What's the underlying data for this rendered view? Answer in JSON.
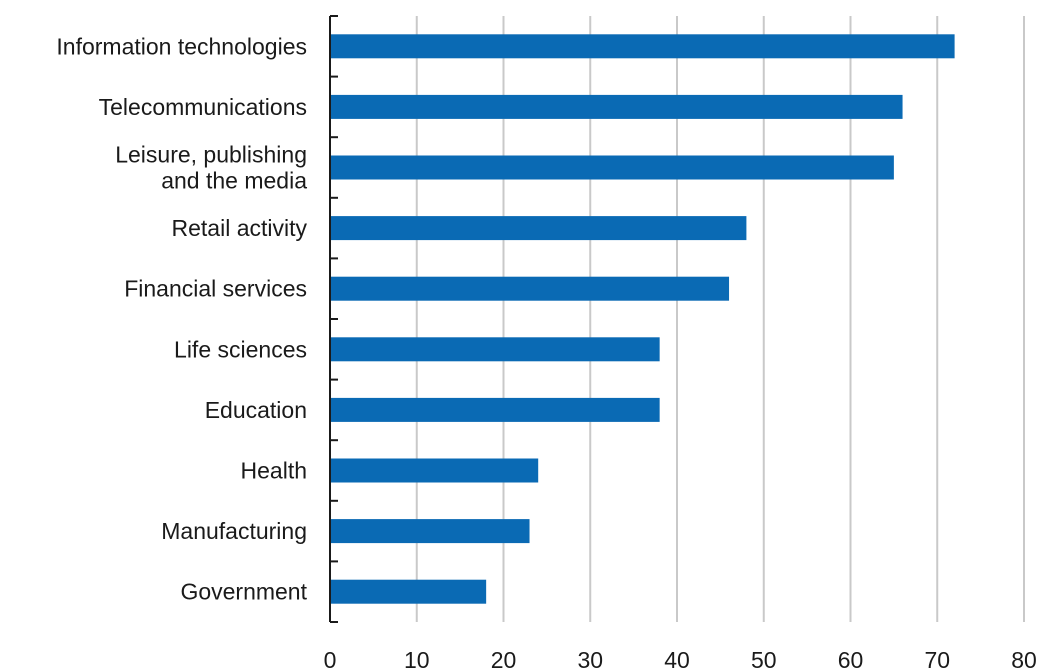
{
  "chart_data": {
    "type": "bar",
    "orientation": "horizontal",
    "title": "",
    "xlabel": "",
    "ylabel": "",
    "categories": [
      "Information technologies",
      "Telecommunications",
      "Leisure, publishing and the media",
      "Retail activity",
      "Financial services",
      "Life sciences",
      "Education",
      "Health",
      "Manufacturing",
      "Government"
    ],
    "category_label_lines": [
      [
        "Information technologies"
      ],
      [
        "Telecommunications"
      ],
      [
        "Leisure, publishing",
        "and the media"
      ],
      [
        "Retail activity"
      ],
      [
        "Financial services"
      ],
      [
        "Life sciences"
      ],
      [
        "Education"
      ],
      [
        "Health"
      ],
      [
        "Manufacturing"
      ],
      [
        "Government"
      ]
    ],
    "values": [
      72,
      66,
      65,
      48,
      46,
      38,
      38,
      24,
      23,
      18
    ],
    "xlim": [
      0,
      80
    ],
    "xticks": [
      0,
      10,
      20,
      30,
      40,
      50,
      60,
      70,
      80
    ],
    "grid": "vertical",
    "legend": "none",
    "bar_color": "#0a6ab4",
    "grid_color": "#c9c9c9",
    "axis_color": "#1a1a1a"
  }
}
